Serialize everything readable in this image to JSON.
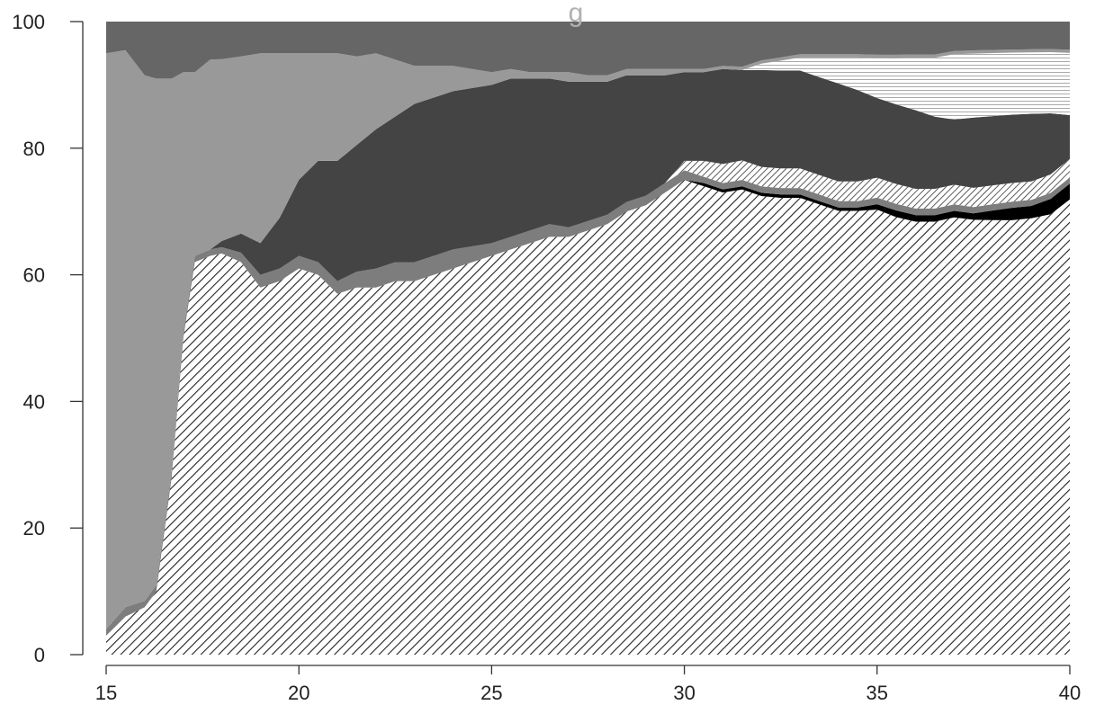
{
  "chart_data": {
    "type": "area",
    "stacked": true,
    "normalized_percent": true,
    "title": "g",
    "xlabel": "",
    "ylabel": "",
    "xlim": [
      15,
      40
    ],
    "ylim": [
      0,
      100
    ],
    "x_ticks": [
      15,
      20,
      25,
      30,
      35,
      40
    ],
    "y_ticks": [
      0,
      20,
      40,
      60,
      80,
      100
    ],
    "x_tick_labels": [
      "15",
      "20",
      "25",
      "30",
      "35",
      "40"
    ],
    "y_tick_labels": [
      "0",
      "20",
      "40",
      "60",
      "80",
      "100"
    ],
    "grid": false,
    "legend": "none",
    "x": [
      15,
      15.5,
      16,
      16.3,
      16.7,
      17,
      17.3,
      17.7,
      18,
      18.5,
      19,
      19.5,
      20,
      20.5,
      21,
      21.5,
      22,
      22.5,
      23,
      23.5,
      24,
      24.5,
      25,
      25.5,
      26,
      26.5,
      27,
      27.5,
      28,
      28.5,
      29,
      29.5,
      30,
      30.5,
      31,
      31.5,
      32,
      32.5,
      33,
      33.5,
      34,
      34.5,
      35,
      35.5,
      36,
      36.5,
      37,
      37.5,
      38,
      38.5,
      39,
      39.5,
      40
    ],
    "series": [
      {
        "fill": "hatch",
        "color": "#222222",
        "values": [
          3,
          6,
          7.5,
          10,
          28,
          50,
          62,
          63,
          64,
          62,
          58,
          59,
          61,
          60,
          57,
          58,
          58,
          59,
          59,
          60,
          61,
          62,
          63,
          64,
          65,
          66,
          66,
          67,
          68,
          70,
          71,
          73,
          75,
          74,
          73,
          72,
          71,
          70,
          70,
          69,
          68,
          68,
          67,
          66,
          66,
          66,
          67,
          68,
          69,
          70,
          71,
          72,
          73
        ]
      },
      {
        "fill": "solid",
        "color": "#000000",
        "values": [
          0,
          0,
          0,
          0,
          0,
          0,
          0,
          0,
          0,
          0,
          0,
          0,
          0,
          0,
          0,
          0,
          0,
          0,
          0,
          0,
          0,
          0,
          0,
          0,
          0,
          0,
          0,
          0,
          0,
          0,
          0,
          0,
          0,
          0.5,
          0.5,
          0.5,
          0.5,
          0.5,
          0.5,
          0.5,
          0.5,
          0.5,
          0.8,
          1,
          1,
          1,
          1,
          1,
          1.5,
          2,
          2,
          2.5,
          2.5
        ]
      },
      {
        "fill": "solid",
        "color": "#7d7d7d",
        "values": [
          1,
          1.5,
          1,
          1,
          1,
          1,
          1,
          1,
          1,
          1.5,
          2,
          2,
          2,
          2,
          2,
          2.5,
          3,
          3,
          3,
          3,
          3,
          2.5,
          2,
          2,
          2,
          2,
          1.5,
          1.5,
          1.5,
          1.5,
          1.5,
          1.5,
          1.5,
          1,
          1,
          1,
          1,
          1,
          1,
          1,
          1,
          1,
          1,
          1,
          1,
          1,
          1,
          1,
          1,
          1,
          1,
          1,
          1
        ]
      },
      {
        "fill": "hatch",
        "color": "#333333",
        "values": [
          0,
          0,
          0,
          0,
          0,
          0,
          0,
          0,
          0,
          0,
          0,
          0,
          0,
          0,
          0,
          0,
          0,
          0,
          0,
          0,
          0,
          0,
          0,
          0,
          0,
          0,
          0,
          0,
          0,
          0,
          0,
          0,
          1.5,
          2.5,
          3,
          3,
          3,
          3,
          3,
          3,
          3,
          3,
          3,
          3,
          3,
          3,
          3,
          3,
          3,
          3,
          3,
          3,
          3
        ]
      },
      {
        "fill": "solid",
        "color": "#444444",
        "values": [
          0,
          0,
          0,
          0,
          0,
          0,
          0,
          0,
          1,
          3,
          5,
          8,
          12,
          16,
          19,
          20,
          22,
          23,
          25,
          25,
          25,
          25,
          25,
          25,
          24,
          23,
          23,
          22,
          21,
          20,
          19,
          17,
          14,
          14,
          15,
          14,
          15,
          15,
          15,
          15,
          15,
          14,
          12,
          12,
          12,
          11,
          10,
          11,
          11,
          11,
          11,
          10,
          7
        ]
      },
      {
        "fill": "hlines",
        "color": "#999999",
        "values": [
          0,
          0,
          0,
          0,
          0,
          0,
          0,
          0,
          0,
          0,
          0,
          0,
          0,
          0,
          0,
          0,
          0,
          0,
          0,
          0,
          0,
          0,
          0,
          0,
          0,
          0,
          0,
          0,
          0,
          0,
          0,
          0,
          0,
          0,
          0,
          0,
          1,
          1.5,
          2,
          3,
          4,
          5,
          6,
          7,
          8,
          9,
          10,
          10,
          10,
          10,
          10,
          10,
          10
        ]
      },
      {
        "fill": "solid",
        "color": "#999999",
        "values": [
          91,
          88,
          83,
          80,
          62,
          41,
          29,
          30,
          29,
          28,
          30,
          26,
          20,
          17,
          17,
          14,
          12,
          9,
          6,
          5,
          4,
          3,
          2,
          1.5,
          1,
          1,
          1.5,
          1,
          1,
          1,
          1,
          1,
          0.5,
          0.5,
          0.5,
          0.5,
          0.5,
          0.5,
          0.5,
          0.5,
          0.5,
          0.5,
          0.5,
          0.5,
          0.5,
          0.5,
          0.5,
          0.5,
          0.5,
          0.5,
          0.5,
          0.5,
          0.5
        ]
      },
      {
        "fill": "solid",
        "color": "#666666",
        "values": [
          5,
          4.5,
          8.5,
          9,
          9,
          8,
          8,
          6,
          6,
          5.5,
          5,
          5,
          5,
          5,
          5,
          5.5,
          5,
          6,
          7,
          7,
          7,
          7.5,
          8,
          7.5,
          8,
          8,
          8,
          8.5,
          8.5,
          7.5,
          7.5,
          7.5,
          7.5,
          7.5,
          7,
          7,
          6,
          5.5,
          5,
          5,
          5,
          5,
          5,
          5,
          5,
          5,
          4.5,
          4.5,
          4.5,
          4.5,
          4.5,
          4.5,
          4.5
        ]
      }
    ]
  }
}
